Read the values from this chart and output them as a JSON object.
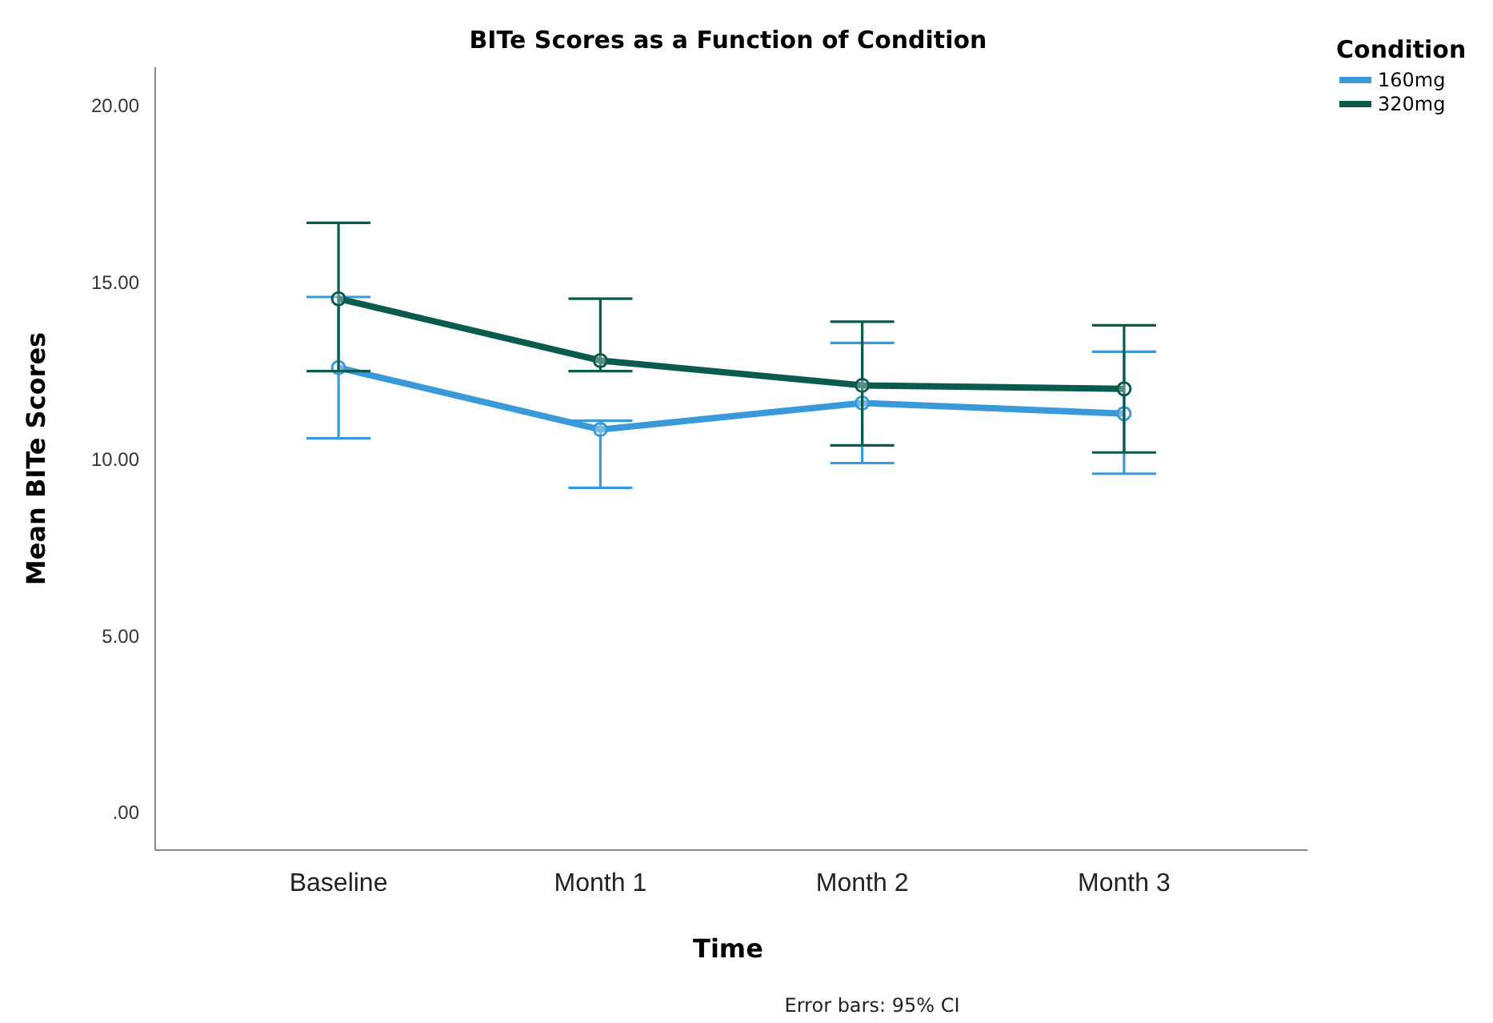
{
  "chart_data": {
    "type": "line",
    "title": "BITe Scores as a Function of Condition",
    "xlabel": "Time",
    "ylabel": "Mean BITe Scores",
    "legend_title": "Condition",
    "categories": [
      "Baseline",
      "Month 1",
      "Month 2",
      "Month 3"
    ],
    "series": [
      {
        "name": "160mg",
        "color": "#3a9ad9",
        "values": [
          12.6,
          10.85,
          11.6,
          11.3
        ],
        "errors": [
          [
            10.6,
            14.6
          ],
          [
            9.2,
            11.1
          ],
          [
            9.9,
            13.3
          ],
          [
            9.6,
            13.05
          ]
        ]
      },
      {
        "name": "320mg",
        "color": "#0b5a4e",
        "values": [
          14.55,
          12.8,
          12.1,
          12.0
        ],
        "errors": [
          [
            12.5,
            16.7
          ],
          [
            12.5,
            14.55
          ],
          [
            10.4,
            13.9
          ],
          [
            10.2,
            13.8
          ]
        ]
      }
    ],
    "ylim": [
      -1.05,
      21.1
    ],
    "yticks": [
      {
        "value": 0,
        "label": ".00"
      },
      {
        "value": 5,
        "label": "5.00"
      },
      {
        "value": 10,
        "label": "10.00"
      },
      {
        "value": 15,
        "label": "15.00"
      },
      {
        "value": 20,
        "label": "20.00"
      }
    ],
    "marker": "circle",
    "legend": "top right",
    "grid": false,
    "annotations": [
      "Error bars: 95% CI"
    ]
  }
}
